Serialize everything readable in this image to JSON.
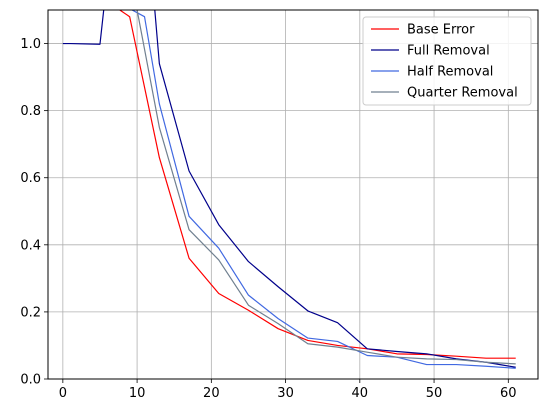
{
  "chart_data": {
    "type": "line",
    "title": "",
    "xlabel": "",
    "ylabel": "",
    "xlim": [
      -2,
      64
    ],
    "ylim": [
      0,
      1.1
    ],
    "grid": true,
    "legend_position": "top-right",
    "x_ticks": [
      0,
      10,
      20,
      30,
      40,
      50,
      60
    ],
    "x_tick_labels": [
      "0",
      "10",
      "20",
      "30",
      "40",
      "50",
      "60"
    ],
    "y_ticks": [
      0,
      0.2,
      0.4,
      0.6,
      0.8,
      1.0
    ],
    "y_tick_labels": [
      "0.0",
      "0.2",
      "0.4",
      "0.6",
      "0.8",
      "1.0"
    ],
    "series": [
      {
        "name": "Base Error",
        "color": "#ff0000",
        "x": [
          1,
          9,
          13,
          17,
          21,
          25,
          29,
          33,
          37,
          41,
          45,
          49,
          53,
          57,
          61
        ],
        "y": [
          1.2,
          1.08,
          0.66,
          0.36,
          0.255,
          0.205,
          0.15,
          0.115,
          0.1,
          0.09,
          0.075,
          0.073,
          0.068,
          0.062,
          0.062
        ]
      },
      {
        "name": "Full Removal",
        "color": "#00008b",
        "x": [
          0,
          1,
          5,
          6,
          12,
          13,
          17,
          21,
          25,
          29,
          33,
          37,
          41,
          45,
          49,
          53,
          57,
          61
        ],
        "y": [
          1.0,
          1.0,
          0.998,
          1.2,
          1.2,
          0.94,
          0.62,
          0.46,
          0.35,
          0.275,
          0.203,
          0.168,
          0.09,
          0.082,
          0.075,
          0.06,
          0.05,
          0.035
        ]
      },
      {
        "name": "Half Removal",
        "color": "#4169e1",
        "x": [
          1,
          11,
          13,
          17,
          21,
          25,
          29,
          33,
          37,
          41,
          45,
          49,
          53,
          57,
          61
        ],
        "y": [
          1.2,
          1.08,
          0.82,
          0.485,
          0.39,
          0.25,
          0.18,
          0.122,
          0.112,
          0.07,
          0.065,
          0.043,
          0.043,
          0.038,
          0.032
        ]
      },
      {
        "name": "Quarter Removal",
        "color": "#708090",
        "x": [
          1,
          10,
          13,
          17,
          21,
          25,
          29,
          33,
          37,
          41,
          45,
          49,
          53,
          57,
          61
        ],
        "y": [
          1.2,
          1.1,
          0.75,
          0.445,
          0.355,
          0.22,
          0.165,
          0.105,
          0.095,
          0.08,
          0.065,
          0.06,
          0.058,
          0.05,
          0.045
        ]
      }
    ]
  }
}
